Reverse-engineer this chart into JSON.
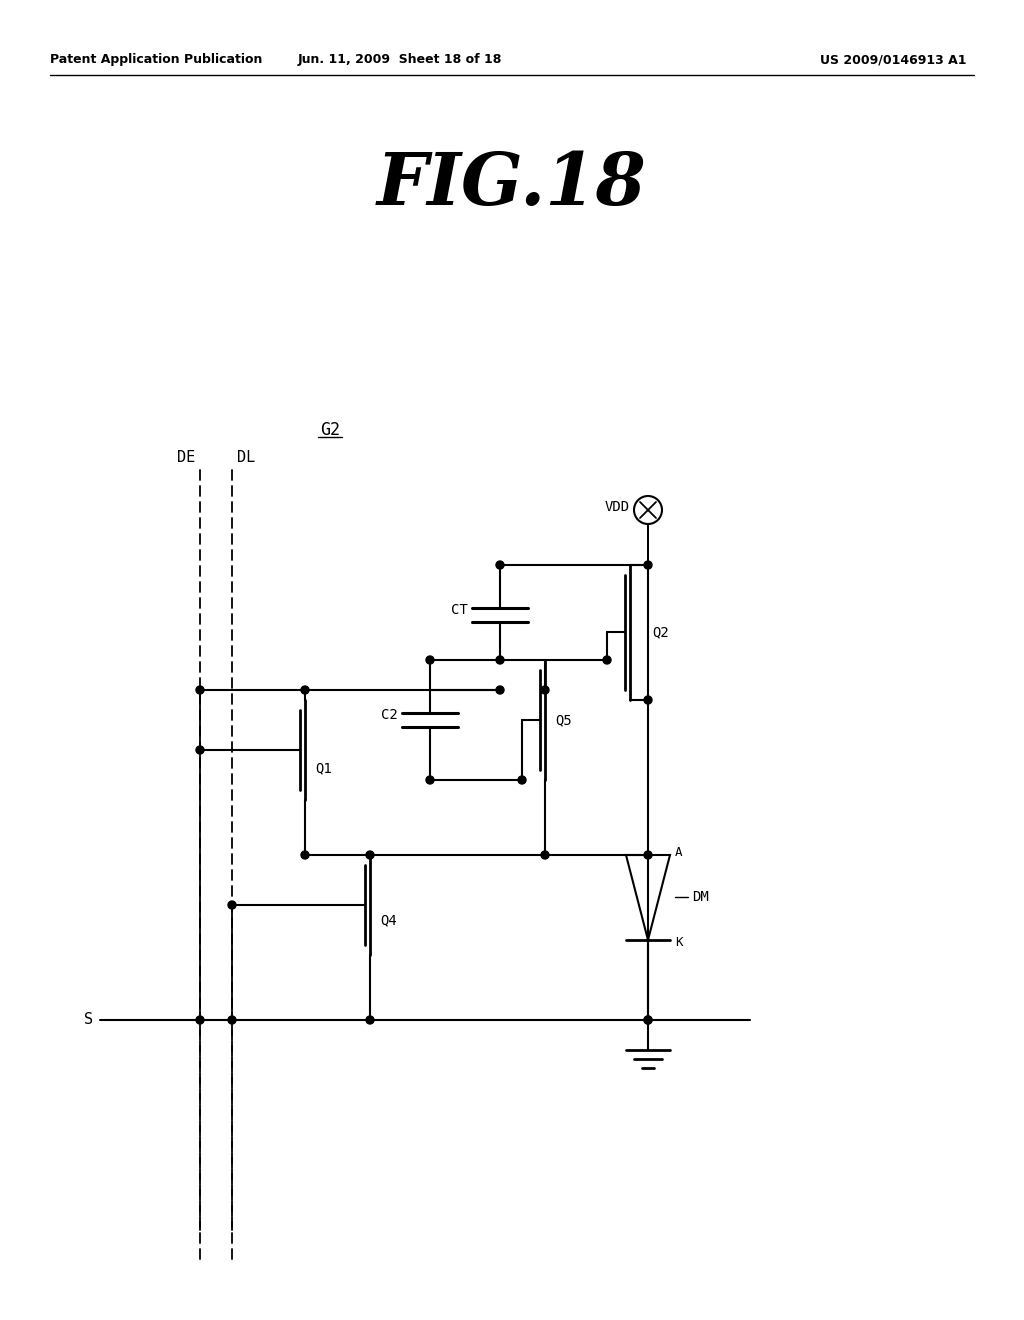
{
  "title": "FIG.18",
  "header_left": "Patent Application Publication",
  "header_center": "Jun. 11, 2009  Sheet 18 of 18",
  "header_right": "US 2009/0146913 A1",
  "background": "#ffffff",
  "line_color": "#000000",
  "fig_label": "G2",
  "labels": {
    "DE": "DE",
    "DL": "DL",
    "VDD": "VDD",
    "Q1": "Q1",
    "Q2": "Q2",
    "Q4": "Q4",
    "Q5": "Q5",
    "CT": "CT",
    "C2": "C2",
    "DM": "DM",
    "S": "S",
    "A": "A",
    "K": "K"
  }
}
